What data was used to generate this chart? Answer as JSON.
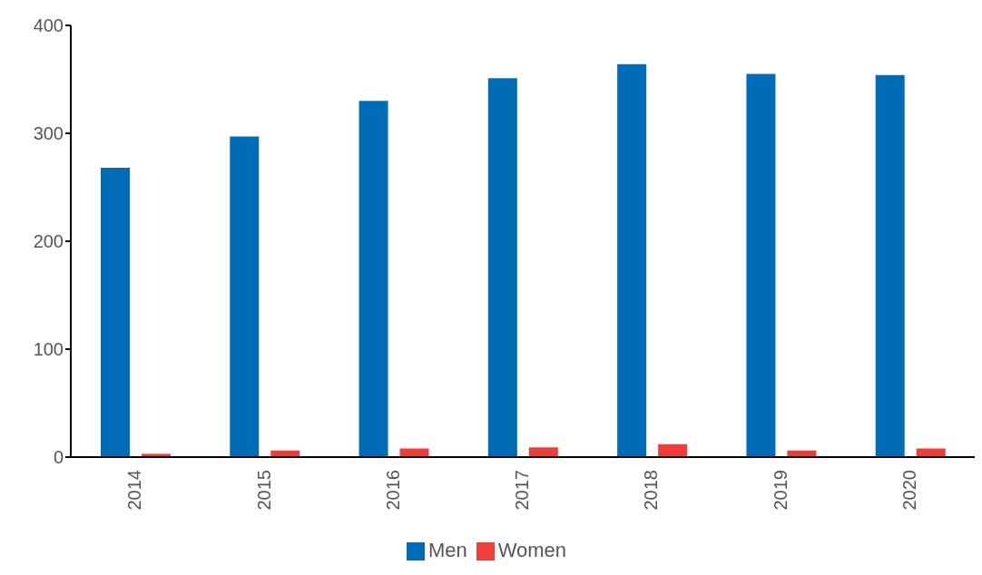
{
  "chart_data": {
    "type": "bar",
    "categories": [
      "2014",
      "2015",
      "2016",
      "2017",
      "2018",
      "2019",
      "2020"
    ],
    "series": [
      {
        "name": "Men",
        "color": "#006bb6",
        "values": [
          268,
          297,
          330,
          351,
          364,
          355,
          354
        ]
      },
      {
        "name": "Women",
        "color": "#ef3e3a",
        "values": [
          3,
          6,
          8,
          9,
          12,
          6,
          8
        ]
      }
    ],
    "ylim": [
      0,
      400
    ],
    "yticks": [
      0,
      100,
      200,
      300,
      400
    ],
    "grid": false,
    "legend": "bottom"
  }
}
